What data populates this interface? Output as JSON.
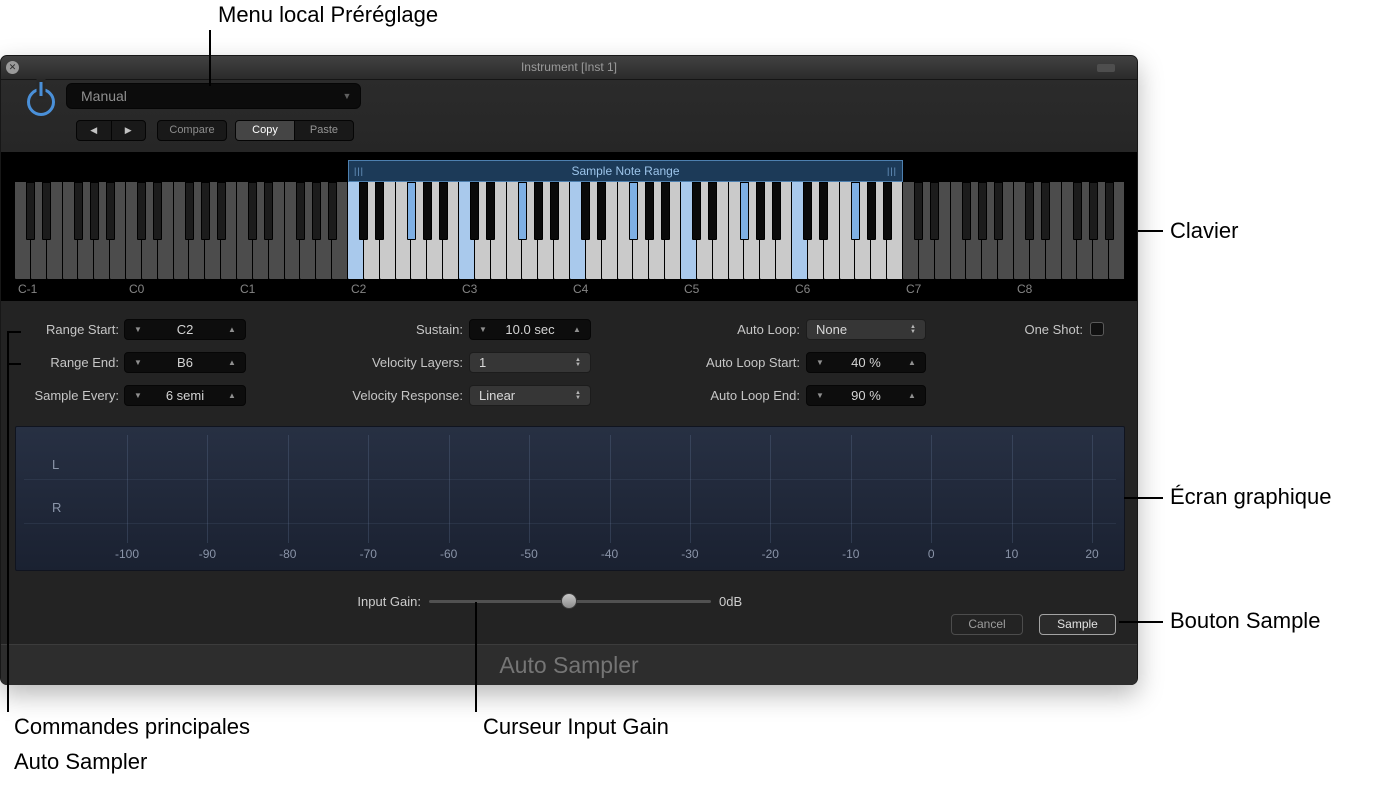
{
  "annotations": {
    "preset": "Menu local Préréglage",
    "keyboard": "Clavier",
    "display": "Écran graphique",
    "sample_button": "Bouton Sample",
    "main_controls": [
      "Commandes principales",
      "Auto Sampler"
    ],
    "input_gain": "Curseur Input Gain"
  },
  "icons": {
    "close": "✕",
    "prev": "◀",
    "next": "▶",
    "dropdown_arrow": "▼",
    "step_down": "▼",
    "step_up": "▲",
    "select_up": "▲",
    "select_down": "▼"
  },
  "window": {
    "title": "Instrument [Inst 1]",
    "header": {
      "preset_value": "Manual",
      "compare_label": "Compare",
      "copy_label": "Copy",
      "paste_label": "Paste"
    },
    "keyboard": {
      "range_label": "Sample Note Range",
      "handle": "|||",
      "octaves": [
        "C-1",
        "C0",
        "C1",
        "C2",
        "C3",
        "C4",
        "C5",
        "C6",
        "C7",
        "C8"
      ],
      "num_octaves": 10,
      "range_start_midi": 36,
      "range_end_midi": 95,
      "sample_step_semitones": 6
    },
    "controls": {
      "range_start": {
        "label": "Range Start:",
        "value": "C2"
      },
      "range_end": {
        "label": "Range End:",
        "value": "B6"
      },
      "sample_every": {
        "label": "Sample Every:",
        "value": "6 semi"
      },
      "sustain": {
        "label": "Sustain:",
        "value": "10.0 sec"
      },
      "velocity_layers": {
        "label": "Velocity Layers:",
        "value": "1"
      },
      "velocity_response": {
        "label": "Velocity Response:",
        "value": "Linear"
      },
      "auto_loop": {
        "label": "Auto Loop:",
        "value": "None"
      },
      "auto_loop_start": {
        "label": "Auto Loop Start:",
        "value": "40 %"
      },
      "auto_loop_end": {
        "label": "Auto Loop End:",
        "value": "90 %"
      },
      "one_shot": {
        "label": "One Shot:",
        "checked": false
      }
    },
    "display": {
      "channel_left": "L",
      "channel_right": "R",
      "db_ticks": [
        "-100",
        "-90",
        "-80",
        "-70",
        "-60",
        "-50",
        "-40",
        "-30",
        "-20",
        "-10",
        "0",
        "10",
        "20"
      ]
    },
    "footer": {
      "input_gain_label": "Input Gain:",
      "input_gain_value": "0dB",
      "cancel_label": "Cancel",
      "sample_label": "Sample",
      "plugin_name": "Auto Sampler"
    }
  },
  "colors": {
    "accent_blue": "#4a90d9",
    "range_bar_bg": "#1c3a58",
    "range_bar_border": "#4d80b0",
    "sampled_key": "#a9c9ec"
  }
}
